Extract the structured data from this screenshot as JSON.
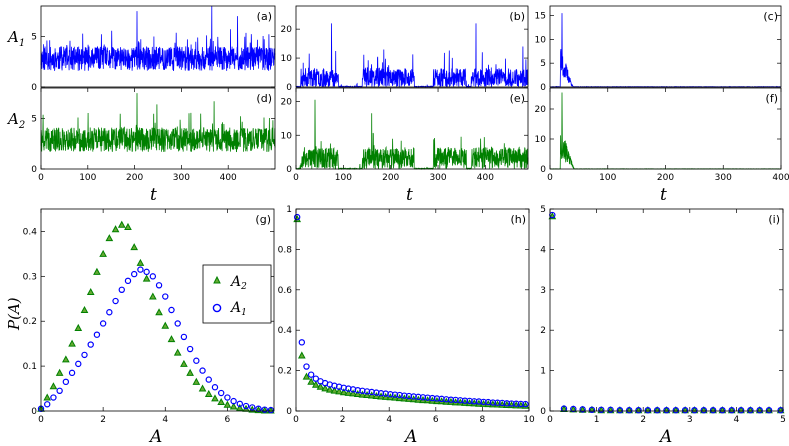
{
  "figure": {
    "background": "#ffffff",
    "color_A1": "#0000ff",
    "color_A2": "#008000"
  },
  "labels": {
    "t": "t",
    "A": "A",
    "PA": "P(A)",
    "A1": "A",
    "A1_sub": "1",
    "A2": "A",
    "A2_sub": "2"
  },
  "legend": {
    "A2": "A",
    "A2_sub": "2",
    "A1": "A",
    "A1_sub": "1"
  },
  "chart_data": [
    {
      "id": "a",
      "panel_label": "(a)",
      "type": "line",
      "series": "A1",
      "color": "#0000ff",
      "xlim": [
        0,
        500
      ],
      "ylim": [
        0,
        8
      ],
      "xticks": [],
      "yticks": [
        0,
        5
      ],
      "regime": "fluctuating",
      "mean": 2.8,
      "amp": 1.1,
      "spikes": [
        [
          205,
          7.5
        ],
        [
          365,
          8.0
        ],
        [
          420,
          7.0
        ]
      ],
      "seed": 11
    },
    {
      "id": "b",
      "panel_label": "(b)",
      "type": "line",
      "series": "A1",
      "color": "#0000ff",
      "xlim": [
        0,
        490
      ],
      "ylim": [
        0,
        28
      ],
      "xticks": [],
      "yticks": [
        0,
        10,
        20
      ],
      "regime": "intermittent",
      "bursts": [
        [
          10,
          90
        ],
        [
          140,
          250
        ],
        [
          290,
          360
        ],
        [
          370,
          490
        ]
      ],
      "burst_mean": 5,
      "spikes": [
        [
          75,
          22
        ],
        [
          380,
          22
        ]
      ],
      "seed": 23
    },
    {
      "id": "c",
      "panel_label": "(c)",
      "type": "line",
      "series": "A1",
      "color": "#0000ff",
      "xlim": [
        0,
        400
      ],
      "ylim": [
        0,
        17
      ],
      "xticks": [],
      "yticks": [
        0,
        5,
        10,
        15
      ],
      "regime": "decay",
      "burst": [
        18,
        40
      ],
      "peak": 15.5,
      "seed": 37
    },
    {
      "id": "d",
      "panel_label": "(d)",
      "type": "line",
      "series": "A2",
      "color": "#008000",
      "xlim": [
        0,
        500
      ],
      "ylim": [
        0,
        8
      ],
      "xticks": [
        0,
        100,
        200,
        300,
        400
      ],
      "yticks": [
        0,
        5
      ],
      "regime": "fluctuating",
      "mean": 2.9,
      "amp": 1.1,
      "spikes": [
        [
          205,
          7.5
        ],
        [
          370,
          6.7
        ]
      ],
      "seed": 41
    },
    {
      "id": "e",
      "panel_label": "(e)",
      "type": "line",
      "series": "A2",
      "color": "#008000",
      "xlim": [
        0,
        490
      ],
      "ylim": [
        0,
        24
      ],
      "xticks": [
        0,
        100,
        200,
        300,
        400
      ],
      "yticks": [
        0,
        10,
        20
      ],
      "regime": "intermittent",
      "bursts": [
        [
          10,
          90
        ],
        [
          140,
          250
        ],
        [
          290,
          360
        ],
        [
          370,
          490
        ]
      ],
      "burst_mean": 5,
      "spikes": [
        [
          40,
          20.5
        ],
        [
          160,
          16.5
        ]
      ],
      "seed": 53
    },
    {
      "id": "f",
      "panel_label": "(f)",
      "type": "line",
      "series": "A2",
      "color": "#008000",
      "xlim": [
        0,
        400
      ],
      "ylim": [
        0,
        27
      ],
      "xticks": [
        0,
        100,
        200,
        300,
        400
      ],
      "yticks": [
        0,
        10,
        20
      ],
      "regime": "decay",
      "burst": [
        18,
        42
      ],
      "peak": 25.5,
      "seed": 67
    },
    {
      "id": "g",
      "panel_label": "(g)",
      "type": "scatter",
      "xlim": [
        0,
        7.5
      ],
      "ylim": [
        0,
        0.45
      ],
      "xticks": [
        0,
        2,
        4,
        6
      ],
      "yticks": [
        0,
        0.1,
        0.2,
        0.3,
        0.4
      ],
      "xlabel": "A",
      "ylabel": "P(A)",
      "legend_position": "middle-right",
      "x": [
        0.0,
        0.2,
        0.4,
        0.6,
        0.8,
        1.0,
        1.2,
        1.4,
        1.6,
        1.8,
        2.0,
        2.2,
        2.4,
        2.6,
        2.8,
        3.0,
        3.2,
        3.4,
        3.6,
        3.8,
        4.0,
        4.2,
        4.4,
        4.6,
        4.8,
        5.0,
        5.2,
        5.4,
        5.6,
        5.8,
        6.0,
        6.2,
        6.4,
        6.6,
        6.8,
        7.0,
        7.2,
        7.4
      ],
      "A2": [
        0.005,
        0.03,
        0.055,
        0.085,
        0.115,
        0.15,
        0.185,
        0.225,
        0.265,
        0.31,
        0.35,
        0.385,
        0.405,
        0.415,
        0.41,
        0.365,
        0.33,
        0.295,
        0.255,
        0.22,
        0.19,
        0.16,
        0.13,
        0.105,
        0.085,
        0.065,
        0.05,
        0.038,
        0.028,
        0.02,
        0.014,
        0.01,
        0.007,
        0.005,
        0.003,
        0.002,
        0.001,
        0.001
      ],
      "A1": [
        0.005,
        0.015,
        0.03,
        0.045,
        0.065,
        0.085,
        0.105,
        0.125,
        0.148,
        0.17,
        0.195,
        0.22,
        0.245,
        0.27,
        0.29,
        0.305,
        0.315,
        0.31,
        0.3,
        0.28,
        0.255,
        0.225,
        0.195,
        0.165,
        0.138,
        0.112,
        0.09,
        0.07,
        0.053,
        0.04,
        0.03,
        0.022,
        0.016,
        0.011,
        0.008,
        0.005,
        0.003,
        0.002
      ]
    },
    {
      "id": "h",
      "panel_label": "(h)",
      "type": "scatter",
      "xlim": [
        0,
        10
      ],
      "ylim": [
        0,
        1
      ],
      "xticks": [
        0,
        2,
        4,
        6,
        8,
        10
      ],
      "yticks": [
        0,
        0.2,
        0.4,
        0.6,
        0.8,
        1
      ],
      "xlabel": "A",
      "x": [
        0.05,
        0.25,
        0.45,
        0.65,
        0.85,
        1.05,
        1.25,
        1.45,
        1.65,
        1.85,
        2.05,
        2.25,
        2.45,
        2.65,
        2.85,
        3.05,
        3.25,
        3.45,
        3.65,
        3.85,
        4.05,
        4.25,
        4.45,
        4.65,
        4.85,
        5.05,
        5.25,
        5.45,
        5.65,
        5.85,
        6.05,
        6.25,
        6.45,
        6.65,
        6.85,
        7.05,
        7.25,
        7.45,
        7.65,
        7.85,
        8.05,
        8.25,
        8.45,
        8.65,
        8.85,
        9.05,
        9.25,
        9.45,
        9.65,
        9.85
      ],
      "A2": [
        0.95,
        0.275,
        0.17,
        0.145,
        0.13,
        0.12,
        0.112,
        0.106,
        0.101,
        0.097,
        0.093,
        0.09,
        0.087,
        0.084,
        0.081,
        0.079,
        0.077,
        0.074,
        0.072,
        0.07,
        0.068,
        0.066,
        0.064,
        0.062,
        0.06,
        0.058,
        0.056,
        0.054,
        0.053,
        0.051,
        0.049,
        0.048,
        0.046,
        0.045,
        0.043,
        0.042,
        0.04,
        0.039,
        0.038,
        0.036,
        0.035,
        0.034,
        0.033,
        0.032,
        0.031,
        0.03,
        0.029,
        0.028,
        0.027,
        0.026
      ],
      "A1": [
        0.96,
        0.34,
        0.22,
        0.18,
        0.16,
        0.147,
        0.138,
        0.131,
        0.125,
        0.12,
        0.115,
        0.111,
        0.107,
        0.103,
        0.1,
        0.097,
        0.094,
        0.091,
        0.088,
        0.086,
        0.083,
        0.081,
        0.079,
        0.076,
        0.074,
        0.072,
        0.07,
        0.068,
        0.066,
        0.064,
        0.062,
        0.06,
        0.058,
        0.056,
        0.055,
        0.053,
        0.051,
        0.05,
        0.048,
        0.047,
        0.045,
        0.044,
        0.042,
        0.041,
        0.04,
        0.038,
        0.037,
        0.036,
        0.035,
        0.034
      ]
    },
    {
      "id": "i",
      "panel_label": "(i)",
      "type": "scatter",
      "xlim": [
        0,
        5
      ],
      "ylim": [
        0,
        5
      ],
      "xticks": [
        0,
        1,
        2,
        3,
        4,
        5
      ],
      "yticks": [
        0,
        1,
        2,
        3,
        4,
        5
      ],
      "xlabel": "A",
      "x": [
        0.05,
        0.3,
        0.5,
        0.7,
        0.9,
        1.1,
        1.3,
        1.5,
        1.7,
        1.9,
        2.1,
        2.3,
        2.5,
        2.7,
        2.9,
        3.1,
        3.3,
        3.5,
        3.7,
        3.9,
        4.1,
        4.3,
        4.5,
        4.7,
        4.95
      ],
      "A2": [
        4.82,
        0.05,
        0.04,
        0.03,
        0.03,
        0.02,
        0.02,
        0.02,
        0.02,
        0.02,
        0.02,
        0.02,
        0.02,
        0.02,
        0.02,
        0.02,
        0.02,
        0.02,
        0.02,
        0.02,
        0.02,
        0.02,
        0.02,
        0.02,
        0.02
      ],
      "A1": [
        4.85,
        0.06,
        0.05,
        0.04,
        0.03,
        0.03,
        0.03,
        0.02,
        0.02,
        0.02,
        0.02,
        0.02,
        0.02,
        0.02,
        0.02,
        0.02,
        0.02,
        0.02,
        0.02,
        0.02,
        0.02,
        0.02,
        0.02,
        0.02,
        0.02
      ]
    }
  ]
}
